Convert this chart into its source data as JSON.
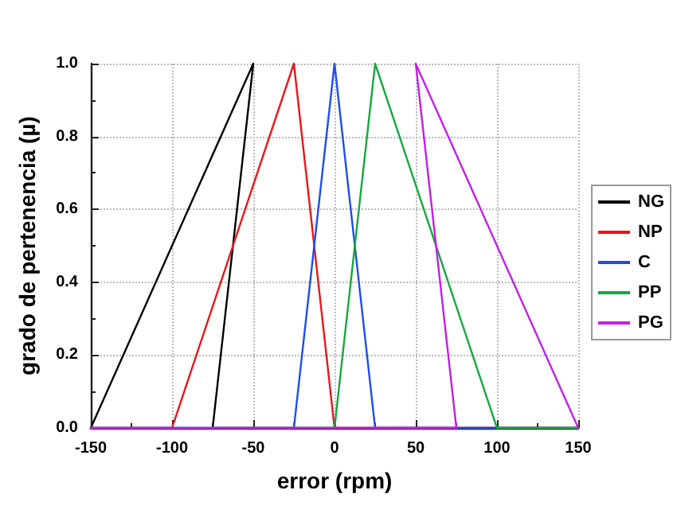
{
  "chart_data": {
    "type": "line",
    "xlabel": "error (rpm)",
    "ylabel": "grado de pertenencia (µ)",
    "xlim": [
      -150,
      150
    ],
    "xticks": [
      -150,
      -100,
      -50,
      0,
      50,
      100,
      150
    ],
    "ylim": [
      0,
      1
    ],
    "yticks": [
      {
        "value": 0,
        "label": "0.0"
      },
      {
        "value": 0.2,
        "label": "0.2"
      },
      {
        "value": 0.4,
        "label": "0.4"
      },
      {
        "value": 0.6,
        "label": "0.6"
      },
      {
        "value": 0.8,
        "label": "0.8"
      },
      {
        "value": 1,
        "label": "1.0"
      }
    ],
    "grid": true,
    "legend": "right",
    "marker": "none",
    "line_style": "solid",
    "series": [
      {
        "name": "NG",
        "color": "#000000",
        "x": [
          -150,
          -50,
          -75,
          150
        ],
        "values": [
          0,
          1,
          0,
          0
        ]
      },
      {
        "name": "NP",
        "color": "#e8161b",
        "x": [
          -150,
          -100,
          -25,
          0,
          150
        ],
        "values": [
          0,
          0,
          1,
          0,
          0
        ]
      },
      {
        "name": "C",
        "color": "#1d4cf0",
        "x": [
          -150,
          -25,
          0,
          25,
          150
        ],
        "values": [
          0,
          0,
          1,
          0,
          0
        ]
      },
      {
        "name": "PP",
        "color": "#14a83e",
        "x": [
          -150,
          0,
          25,
          100,
          150
        ],
        "values": [
          0,
          0,
          1,
          0,
          0
        ]
      },
      {
        "name": "PG",
        "color": "#c31ee8",
        "x": [
          -150,
          75,
          50,
          150
        ],
        "values": [
          0,
          0,
          1,
          0
        ]
      }
    ]
  }
}
